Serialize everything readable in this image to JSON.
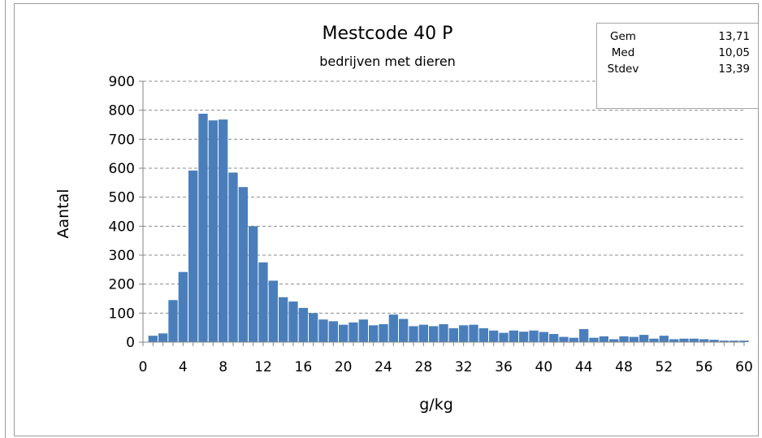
{
  "chart_data": {
    "type": "bar",
    "title": "Mestcode 40 P",
    "subtitle": "bedrijven met dieren",
    "xlabel": "g/kg",
    "ylabel": "Aantal",
    "xlim": [
      0,
      60
    ],
    "ylim": [
      0,
      900
    ],
    "x_ticks": [
      "0",
      "4",
      "8",
      "12",
      "16",
      "20",
      "24",
      "28",
      "32",
      "36",
      "40",
      "44",
      "48",
      "52",
      "56",
      "60"
    ],
    "y_ticks": [
      "0",
      "100",
      "200",
      "300",
      "400",
      "500",
      "600",
      "700",
      "800",
      "900"
    ],
    "grid": true,
    "bar_width": 1,
    "x": [
      1,
      2,
      3,
      4,
      5,
      6,
      7,
      8,
      9,
      10,
      11,
      12,
      13,
      14,
      15,
      16,
      17,
      18,
      19,
      20,
      21,
      22,
      23,
      24,
      25,
      26,
      27,
      28,
      29,
      30,
      31,
      32,
      33,
      34,
      35,
      36,
      37,
      38,
      39,
      40,
      41,
      42,
      43,
      44,
      45,
      46,
      47,
      48,
      49,
      50,
      51,
      52,
      53,
      54,
      55,
      56,
      57,
      58,
      59,
      60
    ],
    "values": [
      22,
      30,
      145,
      242,
      592,
      788,
      765,
      768,
      585,
      535,
      400,
      275,
      212,
      155,
      140,
      118,
      100,
      78,
      72,
      60,
      68,
      78,
      58,
      62,
      95,
      80,
      55,
      60,
      55,
      62,
      48,
      58,
      60,
      48,
      40,
      32,
      40,
      36,
      40,
      35,
      28,
      18,
      15,
      45,
      15,
      20,
      10,
      20,
      18,
      25,
      12,
      22,
      10,
      12,
      12,
      10,
      8,
      5,
      5,
      5
    ],
    "color": "#4a7ebb",
    "stats": [
      {
        "label": "Gem",
        "value": "13,71"
      },
      {
        "label": "Med",
        "value": "10,05"
      },
      {
        "label": "Stdev",
        "value": "13,39"
      }
    ]
  }
}
